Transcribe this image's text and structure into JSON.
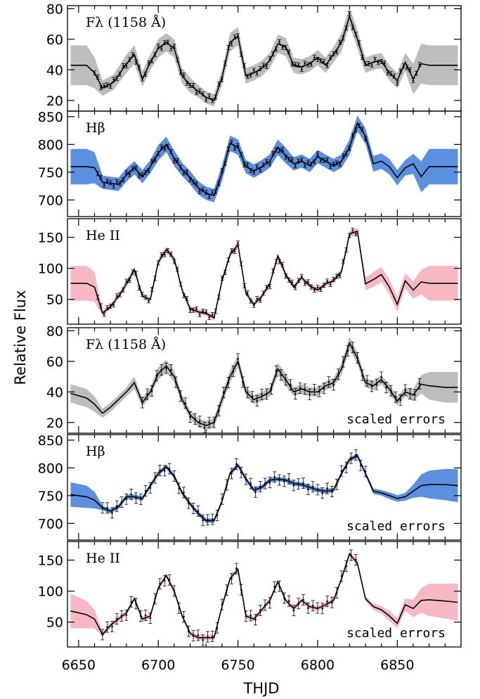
{
  "figure": {
    "ylabel": "Relative Flux",
    "xlabel": "THJD",
    "x_ticks": [
      6650,
      6700,
      6750,
      6800,
      6850
    ],
    "xlim": [
      6643,
      6890
    ]
  },
  "colors": {
    "uv": "#bdbdbd",
    "hbeta": "#5b8fe0",
    "heii": "#f7b8c4",
    "line": "#000000",
    "fit_heii": "#b0304a",
    "fit_hbeta": "#1a3fa0"
  },
  "chart_data": [
    {
      "type": "line",
      "title": "Fλ (1158 Å)",
      "note": "",
      "ylim": [
        13,
        82
      ],
      "yticks": [
        20,
        40,
        60,
        80
      ],
      "band_color": "#bdbdbd",
      "x": [
        6645,
        6655,
        6660,
        6665,
        6672,
        6680,
        6685,
        6690,
        6695,
        6700,
        6705,
        6710,
        6715,
        6720,
        6725,
        6730,
        6735,
        6740,
        6745,
        6750,
        6755,
        6760,
        6765,
        6770,
        6775,
        6780,
        6785,
        6790,
        6795,
        6800,
        6805,
        6810,
        6815,
        6820,
        6825,
        6830,
        6835,
        6840,
        6845,
        6850,
        6855,
        6860,
        6865,
        6870,
        6880,
        6888
      ],
      "y": [
        43,
        43,
        38,
        28,
        32,
        44,
        50,
        34,
        45,
        54,
        58,
        54,
        36,
        30,
        26,
        22,
        20,
        35,
        58,
        62,
        36,
        38,
        41,
        46,
        57,
        55,
        43,
        42,
        44,
        48,
        43,
        50,
        58,
        75,
        60,
        43,
        45,
        46,
        38,
        33,
        45,
        34,
        44,
        43,
        43,
        43
      ],
      "err": [
        13,
        13,
        10,
        5,
        5,
        6,
        6,
        5,
        5,
        6,
        6,
        6,
        5,
        5,
        4,
        4,
        4,
        5,
        6,
        6,
        5,
        5,
        5,
        5,
        6,
        6,
        5,
        5,
        5,
        5,
        5,
        5,
        6,
        6,
        6,
        5,
        5,
        5,
        5,
        5,
        6,
        10,
        13,
        13,
        13,
        13
      ],
      "obs_range": [
        6660,
        6865
      ]
    },
    {
      "type": "line",
      "title": "Hβ",
      "note": "",
      "ylim": [
        670,
        860
      ],
      "yticks": [
        700,
        750,
        800,
        850
      ],
      "band_color": "#5b8fe0",
      "x": [
        6645,
        6655,
        6660,
        6665,
        6670,
        6675,
        6680,
        6685,
        6690,
        6695,
        6700,
        6705,
        6710,
        6715,
        6720,
        6725,
        6730,
        6735,
        6740,
        6745,
        6750,
        6755,
        6760,
        6765,
        6770,
        6775,
        6780,
        6785,
        6790,
        6795,
        6800,
        6805,
        6810,
        6815,
        6820,
        6825,
        6830,
        6835,
        6840,
        6845,
        6850,
        6855,
        6860,
        6865,
        6870,
        6880,
        6888
      ],
      "y": [
        760,
        760,
        758,
        732,
        730,
        728,
        745,
        758,
        742,
        760,
        785,
        800,
        775,
        755,
        740,
        722,
        712,
        708,
        748,
        802,
        795,
        760,
        752,
        760,
        770,
        795,
        780,
        765,
        770,
        762,
        778,
        770,
        762,
        770,
        795,
        838,
        815,
        765,
        770,
        760,
        740,
        758,
        765,
        742,
        760,
        760,
        760
      ],
      "err": [
        32,
        32,
        28,
        12,
        12,
        12,
        12,
        12,
        12,
        12,
        14,
        14,
        14,
        12,
        12,
        12,
        12,
        12,
        14,
        14,
        14,
        12,
        12,
        12,
        12,
        14,
        14,
        12,
        12,
        12,
        12,
        12,
        12,
        12,
        14,
        14,
        14,
        14,
        14,
        14,
        14,
        14,
        18,
        28,
        32,
        32,
        32
      ],
      "obs_range": [
        6662,
        6830
      ]
    },
    {
      "type": "line",
      "title": "He II",
      "note": "",
      "ylim": [
        10,
        180
      ],
      "yticks": [
        50,
        100,
        150
      ],
      "band_color": "#f7b8c4",
      "x": [
        6645,
        6655,
        6660,
        6665,
        6670,
        6675,
        6680,
        6685,
        6690,
        6695,
        6700,
        6705,
        6710,
        6715,
        6720,
        6725,
        6730,
        6735,
        6740,
        6745,
        6750,
        6755,
        6760,
        6765,
        6770,
        6775,
        6780,
        6785,
        6790,
        6795,
        6800,
        6805,
        6810,
        6815,
        6820,
        6825,
        6830,
        6835,
        6840,
        6845,
        6850,
        6855,
        6860,
        6865,
        6870,
        6880,
        6888
      ],
      "y": [
        76,
        76,
        70,
        28,
        38,
        55,
        75,
        98,
        55,
        50,
        110,
        130,
        115,
        65,
        35,
        30,
        28,
        20,
        80,
        122,
        138,
        60,
        42,
        55,
        75,
        120,
        90,
        70,
        85,
        72,
        65,
        75,
        80,
        95,
        155,
        160,
        75,
        82,
        90,
        70,
        42,
        80,
        65,
        78,
        76,
        76,
        76
      ],
      "err": [
        28,
        28,
        24,
        4,
        4,
        4,
        5,
        5,
        4,
        4,
        5,
        5,
        5,
        4,
        4,
        4,
        4,
        4,
        5,
        5,
        5,
        4,
        4,
        4,
        4,
        5,
        5,
        4,
        4,
        4,
        4,
        4,
        4,
        5,
        5,
        5,
        10,
        12,
        12,
        12,
        12,
        12,
        14,
        20,
        28,
        28,
        28
      ],
      "obs_range": [
        6662,
        6825
      ]
    },
    {
      "type": "line",
      "title": "Fλ (1158 Å)",
      "note": "scaled errors",
      "ylim": [
        13,
        82
      ],
      "yticks": [
        20,
        40,
        60,
        80
      ],
      "band_color": "#bdbdbd",
      "x": [
        6645,
        6655,
        6660,
        6665,
        6670,
        6675,
        6680,
        6685,
        6690,
        6695,
        6700,
        6705,
        6710,
        6715,
        6720,
        6725,
        6730,
        6735,
        6740,
        6745,
        6750,
        6755,
        6760,
        6765,
        6770,
        6775,
        6780,
        6785,
        6790,
        6795,
        6800,
        6805,
        6810,
        6815,
        6820,
        6825,
        6830,
        6835,
        6840,
        6845,
        6850,
        6855,
        6860,
        6865,
        6870,
        6880,
        6888
      ],
      "y": [
        39,
        36,
        32,
        26,
        30,
        35,
        40,
        46,
        33,
        40,
        52,
        57,
        50,
        35,
        25,
        20,
        18,
        20,
        35,
        50,
        60,
        40,
        35,
        37,
        40,
        55,
        48,
        40,
        42,
        40,
        40,
        44,
        46,
        55,
        72,
        62,
        46,
        44,
        48,
        42,
        34,
        40,
        38,
        45,
        44,
        43,
        43
      ],
      "err": [
        6,
        6,
        5,
        3,
        3,
        3,
        3,
        4,
        3,
        3,
        4,
        4,
        4,
        3,
        3,
        3,
        3,
        3,
        4,
        4,
        4,
        3,
        3,
        3,
        3,
        4,
        4,
        3,
        3,
        3,
        3,
        3,
        3,
        4,
        4,
        4,
        3,
        3,
        3,
        3,
        3,
        3,
        4,
        6,
        9,
        10,
        10
      ],
      "obs_range": [
        6690,
        6865
      ]
    },
    {
      "type": "line",
      "title": "Hβ",
      "note": "scaled errors",
      "ylim": [
        670,
        860
      ],
      "yticks": [
        700,
        750,
        800,
        850
      ],
      "band_color": "#5b8fe0",
      "x": [
        6645,
        6655,
        6660,
        6665,
        6670,
        6675,
        6680,
        6685,
        6690,
        6695,
        6700,
        6705,
        6710,
        6715,
        6720,
        6725,
        6730,
        6735,
        6740,
        6745,
        6750,
        6755,
        6760,
        6765,
        6770,
        6775,
        6780,
        6785,
        6790,
        6795,
        6800,
        6805,
        6810,
        6815,
        6820,
        6825,
        6830,
        6835,
        6840,
        6845,
        6850,
        6855,
        6860,
        6865,
        6870,
        6880,
        6888
      ],
      "y": [
        752,
        748,
        742,
        728,
        722,
        730,
        748,
        748,
        745,
        768,
        790,
        802,
        785,
        755,
        735,
        718,
        705,
        705,
        740,
        790,
        805,
        780,
        760,
        765,
        778,
        780,
        778,
        772,
        770,
        765,
        760,
        758,
        760,
        790,
        815,
        822,
        790,
        758,
        755,
        750,
        745,
        748,
        758,
        768,
        770,
        770,
        768
      ],
      "err": [
        22,
        20,
        15,
        4,
        4,
        4,
        4,
        4,
        4,
        4,
        4,
        4,
        4,
        4,
        4,
        4,
        4,
        4,
        4,
        4,
        4,
        4,
        4,
        4,
        4,
        4,
        4,
        4,
        4,
        4,
        4,
        4,
        4,
        4,
        4,
        4,
        4,
        5,
        5,
        6,
        6,
        7,
        12,
        20,
        25,
        28,
        30
      ],
      "obs_range": [
        6665,
        6830
      ]
    },
    {
      "type": "line",
      "title": "He II",
      "note": "scaled errors",
      "ylim": [
        10,
        180
      ],
      "yticks": [
        50,
        100,
        150
      ],
      "band_color": "#f7b8c4",
      "x": [
        6645,
        6655,
        6660,
        6665,
        6670,
        6675,
        6680,
        6685,
        6690,
        6695,
        6700,
        6705,
        6710,
        6715,
        6720,
        6725,
        6730,
        6735,
        6740,
        6745,
        6750,
        6755,
        6760,
        6765,
        6770,
        6775,
        6780,
        6785,
        6790,
        6795,
        6800,
        6805,
        6810,
        6815,
        6820,
        6825,
        6830,
        6835,
        6840,
        6845,
        6850,
        6855,
        6860,
        6865,
        6870,
        6880,
        6888
      ],
      "y": [
        68,
        62,
        55,
        30,
        45,
        55,
        65,
        88,
        55,
        60,
        105,
        125,
        100,
        60,
        32,
        25,
        25,
        25,
        75,
        120,
        135,
        60,
        55,
        70,
        85,
        115,
        85,
        72,
        85,
        75,
        72,
        78,
        85,
        120,
        160,
        145,
        88,
        75,
        70,
        60,
        48,
        78,
        72,
        85,
        86,
        84,
        82
      ],
      "err": [
        28,
        22,
        15,
        4,
        4,
        4,
        4,
        4,
        4,
        4,
        4,
        4,
        4,
        4,
        4,
        4,
        4,
        4,
        4,
        4,
        4,
        4,
        4,
        4,
        4,
        4,
        4,
        4,
        4,
        4,
        4,
        4,
        4,
        4,
        4,
        4,
        4,
        5,
        6,
        8,
        8,
        10,
        14,
        20,
        26,
        28,
        30
      ],
      "obs_range": [
        6665,
        6825
      ]
    }
  ]
}
